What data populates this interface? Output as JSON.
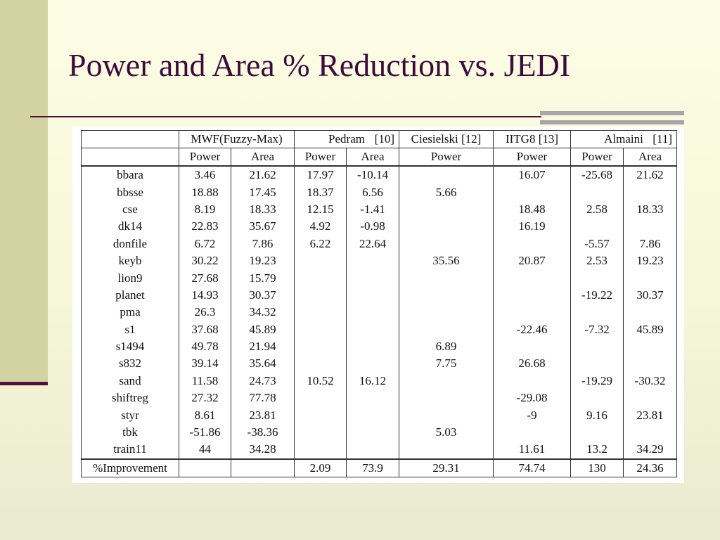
{
  "slide": {
    "title": "Power and Area % Reduction vs. JEDI"
  },
  "table": {
    "groups": {
      "mwf": "MWF(Fuzzy-Max)",
      "pedram_name": "Pedram",
      "pedram_ref": "[10]",
      "ciesielski": "Ciesielski [12]",
      "iitg8": "IITG8 [13]",
      "almaini_name": "Almaini",
      "almaini_ref": "[11]"
    },
    "subheaders": [
      "Power",
      "Area",
      "Power",
      "Area",
      "Power",
      "Power",
      "Power",
      "Area"
    ],
    "rows": [
      [
        "bbara",
        "3.46",
        "21.62",
        "17.97",
        "-10.14",
        "",
        "16.07",
        "-25.68",
        "21.62"
      ],
      [
        "bbsse",
        "18.88",
        "17.45",
        "18.37",
        "6.56",
        "5.66",
        "",
        "",
        ""
      ],
      [
        "cse",
        "8.19",
        "18.33",
        "12.15",
        "-1.41",
        "",
        "18.48",
        "2.58",
        "18.33"
      ],
      [
        "dk14",
        "22.83",
        "35.67",
        "4.92",
        "-0.98",
        "",
        "16.19",
        "",
        ""
      ],
      [
        "donfile",
        "6.72",
        "7.86",
        "6.22",
        "22.64",
        "",
        "",
        "-5.57",
        "7.86"
      ],
      [
        "keyb",
        "30.22",
        "19.23",
        "",
        "",
        "35.56",
        "20.87",
        "2.53",
        "19.23"
      ],
      [
        "lion9",
        "27.68",
        "15.79",
        "",
        "",
        "",
        "",
        "",
        ""
      ],
      [
        "planet",
        "14.93",
        "30.37",
        "",
        "",
        "",
        "",
        "-19.22",
        "30.37"
      ],
      [
        "pma",
        "26.3",
        "34.32",
        "",
        "",
        "",
        "",
        "",
        ""
      ],
      [
        "s1",
        "37.68",
        "45.89",
        "",
        "",
        "",
        "-22.46",
        "-7.32",
        "45.89"
      ],
      [
        "s1494",
        "49.78",
        "21.94",
        "",
        "",
        "6.89",
        "",
        "",
        ""
      ],
      [
        "s832",
        "39.14",
        "35.64",
        "",
        "",
        "7.75",
        "26.68",
        "",
        ""
      ],
      [
        "sand",
        "11.58",
        "24.73",
        "10.52",
        "16.12",
        "",
        "",
        "-19.29",
        "-30.32"
      ],
      [
        "shiftreg",
        "27.32",
        "77.78",
        "",
        "",
        "",
        "-29.08",
        "",
        ""
      ],
      [
        "styr",
        "8.61",
        "23.81",
        "",
        "",
        "",
        "-9",
        "9.16",
        "23.81"
      ],
      [
        "tbk",
        "-51.86",
        "-38.36",
        "",
        "",
        "5.03",
        "",
        "",
        ""
      ],
      [
        "train11",
        "44",
        "34.28",
        "",
        "",
        "",
        "11.61",
        "13.2",
        "34.29"
      ]
    ],
    "improvement": [
      "%Improvement",
      "",
      "",
      "2.09",
      "73.9",
      "29.31",
      "74.74",
      "130",
      "24.36"
    ]
  }
}
